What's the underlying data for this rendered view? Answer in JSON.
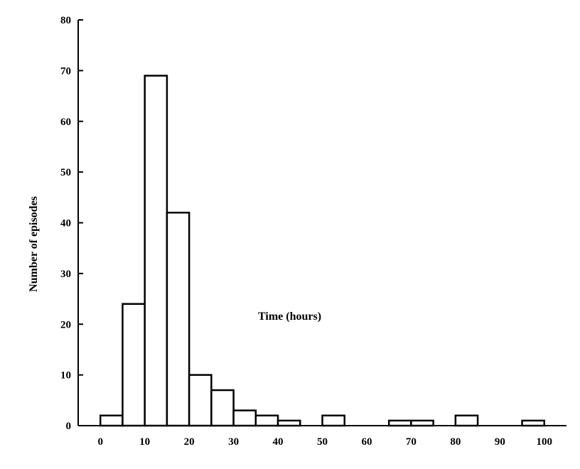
{
  "chart_data": {
    "type": "bar",
    "xlabel": "Time (hours)",
    "ylabel": "Number of episodes",
    "xlim": [
      -5,
      105
    ],
    "ylim": [
      0,
      80
    ],
    "bin_width": 5,
    "x_ticks": [
      0,
      10,
      20,
      30,
      40,
      50,
      60,
      70,
      80,
      90,
      100
    ],
    "y_ticks": [
      0,
      10,
      20,
      30,
      40,
      50,
      60,
      70,
      80
    ],
    "bins": [
      {
        "start": 0,
        "end": 5,
        "value": 2
      },
      {
        "start": 5,
        "end": 10,
        "value": 24
      },
      {
        "start": 10,
        "end": 15,
        "value": 69
      },
      {
        "start": 15,
        "end": 20,
        "value": 42
      },
      {
        "start": 20,
        "end": 25,
        "value": 10
      },
      {
        "start": 25,
        "end": 30,
        "value": 7
      },
      {
        "start": 30,
        "end": 35,
        "value": 3
      },
      {
        "start": 35,
        "end": 40,
        "value": 2
      },
      {
        "start": 40,
        "end": 45,
        "value": 1
      },
      {
        "start": 50,
        "end": 55,
        "value": 2
      },
      {
        "start": 65,
        "end": 70,
        "value": 1
      },
      {
        "start": 70,
        "end": 75,
        "value": 1
      },
      {
        "start": 80,
        "end": 85,
        "value": 2
      },
      {
        "start": 95,
        "end": 100,
        "value": 1
      }
    ],
    "grid": false,
    "legend": "none",
    "bar_fill": "#ffffff",
    "bar_stroke": "#000000"
  }
}
